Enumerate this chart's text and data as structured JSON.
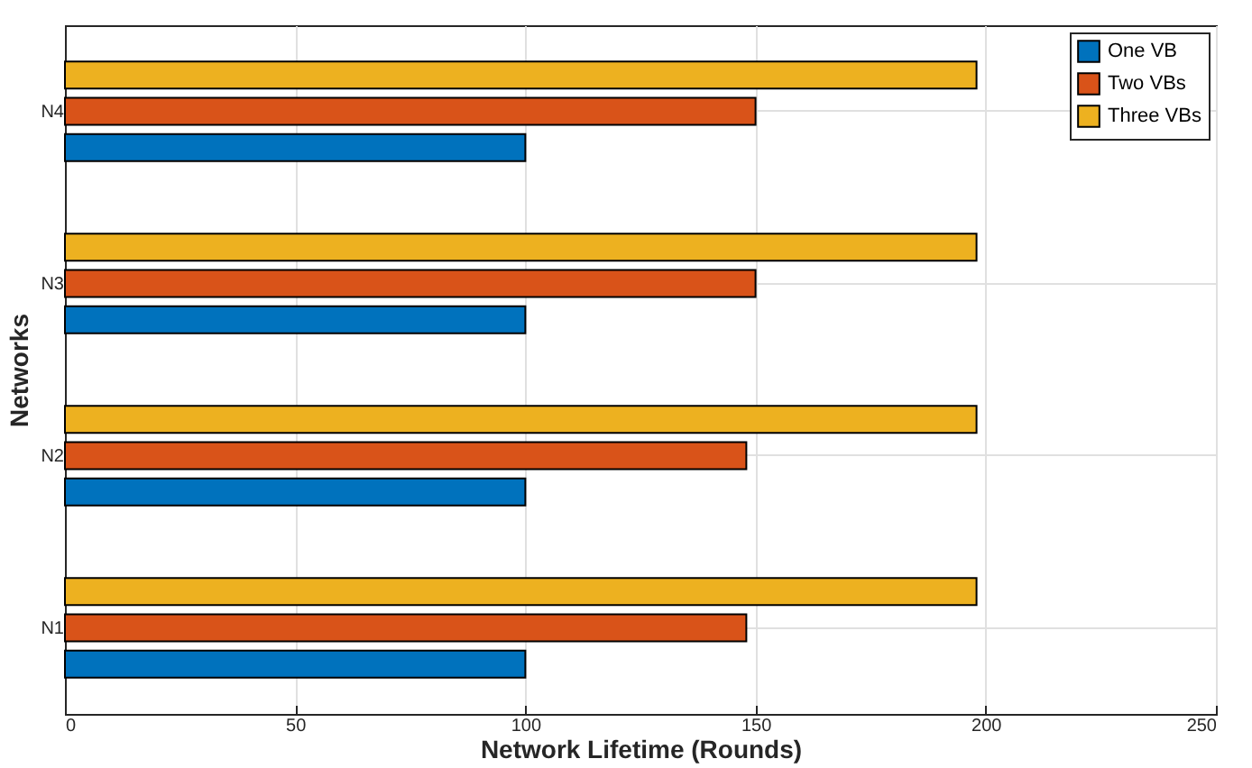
{
  "chart_data": {
    "type": "bar",
    "orientation": "horizontal",
    "xlabel": "Network Lifetime (Rounds)",
    "ylabel": "Networks",
    "categories": [
      "N4",
      "N3",
      "N2",
      "N1"
    ],
    "series": [
      {
        "name": "One VB",
        "color": "#0072bd",
        "values": [
          100,
          100,
          100,
          100
        ]
      },
      {
        "name": "Two VBs",
        "color": "#d95319",
        "values": [
          150,
          150,
          148,
          148
        ]
      },
      {
        "name": "Three VBs",
        "color": "#edb120",
        "values": [
          198,
          198,
          198,
          198
        ]
      }
    ],
    "xlim": [
      0,
      250
    ],
    "xticks": [
      0,
      50,
      100,
      150,
      200,
      250
    ],
    "grid": true,
    "legend": "top right"
  }
}
